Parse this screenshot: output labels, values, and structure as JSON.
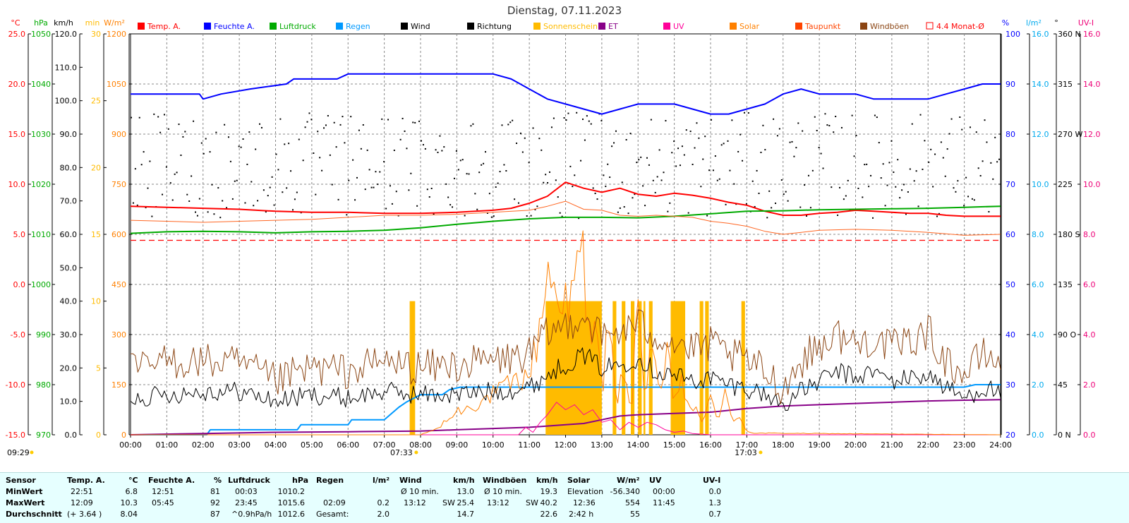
{
  "chart_data": {
    "type": "line",
    "title": "Dienstag, 07.11.2023",
    "x_axis": {
      "ticks": [
        "00:00",
        "01:00",
        "02:00",
        "03:00",
        "04:00",
        "05:00",
        "06:00",
        "07:00",
        "08:00",
        "09:00",
        "10:00",
        "11:00",
        "12:00",
        "13:00",
        "14:00",
        "15:00",
        "16:00",
        "17:00",
        "18:00",
        "19:00",
        "20:00",
        "21:00",
        "22:00",
        "23:00",
        "24:00"
      ],
      "range_hours": [
        0,
        24
      ]
    },
    "sun_events": {
      "sunrise": "07:33",
      "sunset": "17:03",
      "sunshine_start_label": "09:29"
    },
    "left_axes": [
      {
        "unit": "°C",
        "color": "#ff0000",
        "min": -15,
        "max": 25,
        "ticks": [
          "25.0",
          "20.0",
          "15.0",
          "10.0",
          "5.0",
          "0.0",
          "-5.0",
          "-10.0",
          "-15.0"
        ]
      },
      {
        "unit": "hPa",
        "color": "#00aa00",
        "min": 970,
        "max": 1050,
        "ticks": [
          "1050",
          "1040",
          "1030",
          "1020",
          "1010",
          "1000",
          "990",
          "980",
          "970"
        ]
      },
      {
        "unit": "km/h",
        "color": "#000000",
        "min": 0,
        "max": 120,
        "ticks": [
          "120.0",
          "110.0",
          "100.0",
          "90.0",
          "80.0",
          "70.0",
          "60.0",
          "50.0",
          "40.0",
          "30.0",
          "20.0",
          "10.0",
          "0.0"
        ]
      },
      {
        "unit": "min",
        "color": "#ffbb00",
        "min": 0,
        "max": 30,
        "ticks": [
          "30",
          "25",
          "20",
          "15",
          "10",
          "5",
          "0"
        ]
      },
      {
        "unit": "W/m²",
        "color": "#ff8000",
        "min": 0,
        "max": 1200,
        "ticks": [
          "1200",
          "1050",
          "900",
          "750",
          "600",
          "450",
          "300",
          "150",
          "0"
        ]
      }
    ],
    "right_axes": [
      {
        "unit": "%",
        "color": "#0000ff",
        "min": 20,
        "max": 100,
        "ticks": [
          "100",
          "90",
          "80",
          "70",
          "60",
          "50",
          "40",
          "30",
          "20"
        ]
      },
      {
        "unit": "l/m²",
        "color": "#00aaee",
        "min": 0,
        "max": 16,
        "ticks": [
          "16.0",
          "14.0",
          "12.0",
          "10.0",
          "8.0",
          "6.0",
          "4.0",
          "2.0",
          "0.0"
        ]
      },
      {
        "unit": "°",
        "color": "#000000",
        "min": 0,
        "max": 360,
        "ticks": [
          "360 N",
          "315",
          "270 W",
          "225",
          "180 S",
          "135",
          "90 O",
          "45",
          "0 N"
        ]
      },
      {
        "unit": "UV-I",
        "color": "#ee0077",
        "min": 0,
        "max": 16,
        "ticks": [
          "16.0",
          "14.0",
          "12.0",
          "10.0",
          "8.0",
          "6.0",
          "4.0",
          "2.0",
          "0.0"
        ]
      }
    ],
    "legend": [
      {
        "label": "Temp. A.",
        "color": "#ff0000"
      },
      {
        "label": "Feuchte A.",
        "color": "#0000ff"
      },
      {
        "label": "Luftdruck",
        "color": "#00aa00"
      },
      {
        "label": "Regen",
        "color": "#0099ff"
      },
      {
        "label": "Wind",
        "color": "#000000"
      },
      {
        "label": "Richtung",
        "color": "#000000"
      },
      {
        "label": "Sonnenschein",
        "color": "#ffbb00"
      },
      {
        "label": "ET",
        "color": "#880088"
      },
      {
        "label": "UV",
        "color": "#ff0099"
      },
      {
        "label": "Solar",
        "color": "#ff8000"
      },
      {
        "label": "Taupunkt",
        "color": "#ff4400"
      },
      {
        "label": "Windböen",
        "color": "#8b4513"
      },
      {
        "label": "4.4 Monat-Ø",
        "color": "#ff0000"
      }
    ],
    "reference_lines": [
      {
        "name": "4.4 Monat-Ø",
        "axis": "°C",
        "value": 4.4
      }
    ],
    "series": [
      {
        "name": "Temp. A.",
        "axis": "°C",
        "color": "#ff0000",
        "x": [
          0,
          1,
          2,
          3,
          4,
          5,
          6,
          7,
          8,
          9,
          10,
          10.5,
          11,
          11.5,
          12,
          12.5,
          13,
          13.5,
          14,
          14.5,
          15,
          15.5,
          16,
          16.5,
          17,
          17.5,
          18,
          18.5,
          19,
          19.5,
          20,
          20.5,
          21,
          21.5,
          22,
          22.5,
          23,
          23.5,
          24
        ],
        "y": [
          7.8,
          7.7,
          7.6,
          7.5,
          7.3,
          7.2,
          7.2,
          7.1,
          7.1,
          7.2,
          7.4,
          7.6,
          8.1,
          8.8,
          10.2,
          9.6,
          9.2,
          9.6,
          9.0,
          8.8,
          9.1,
          8.9,
          8.6,
          8.2,
          7.9,
          7.3,
          6.9,
          6.9,
          7.1,
          7.2,
          7.4,
          7.3,
          7.2,
          7.1,
          7.1,
          6.9,
          6.8,
          6.8,
          6.8
        ]
      },
      {
        "name": "Feuchte A.",
        "axis": "%",
        "color": "#0000ff",
        "x": [
          0,
          1.9,
          2.0,
          2.5,
          3.3,
          4.3,
          4.5,
          5.0,
          5.7,
          6.0,
          7,
          8,
          9,
          10.0,
          10.5,
          11.0,
          11.5,
          12.0,
          12.5,
          13.0,
          13.5,
          14.0,
          14.5,
          15.0,
          15.5,
          16.0,
          16.5,
          17.0,
          17.5,
          18.0,
          18.5,
          19.0,
          19.5,
          20.0,
          20.5,
          21.0,
          21.5,
          22.0,
          22.5,
          23.0,
          23.5,
          24
        ],
        "y": [
          88,
          88,
          87,
          88,
          89,
          90,
          91,
          91,
          91,
          92,
          92,
          92,
          92,
          92,
          91,
          89,
          87,
          86,
          85,
          84,
          85,
          86,
          86,
          86,
          85,
          84,
          84,
          85,
          86,
          88,
          89,
          88,
          88,
          88,
          87,
          87,
          87,
          87,
          88,
          89,
          90,
          90
        ]
      },
      {
        "name": "Luftdruck",
        "axis": "hPa",
        "color": "#00aa00",
        "x": [
          0,
          1,
          2,
          3,
          4,
          5,
          6,
          7,
          8,
          9,
          10,
          11,
          12,
          13,
          14,
          15,
          16,
          17,
          18,
          19,
          20,
          21,
          22,
          23,
          24
        ],
        "y": [
          1010.2,
          1010.5,
          1010.6,
          1010.5,
          1010.3,
          1010.5,
          1010.6,
          1010.8,
          1011.3,
          1012.0,
          1012.6,
          1013.1,
          1013.4,
          1013.4,
          1013.3,
          1013.6,
          1014.1,
          1014.6,
          1014.7,
          1014.9,
          1015.0,
          1015.1,
          1015.2,
          1015.4,
          1015.6
        ]
      },
      {
        "name": "Taupunkt",
        "axis": "°C",
        "color": "#ff6622",
        "x": [
          0,
          1,
          2,
          3,
          4,
          5,
          6,
          7,
          8,
          9,
          10,
          11,
          11.5,
          12,
          12.5,
          13,
          13.5,
          14,
          14.5,
          15,
          15.5,
          16,
          16.5,
          17,
          17.5,
          18,
          18.5,
          19,
          20,
          21,
          22,
          23,
          24
        ],
        "y": [
          6.4,
          6.3,
          6.2,
          6.3,
          6.4,
          6.5,
          6.7,
          6.9,
          6.9,
          7.0,
          7.2,
          7.4,
          7.8,
          8.3,
          7.5,
          7.4,
          6.9,
          6.8,
          6.9,
          6.8,
          6.7,
          6.3,
          6.1,
          5.8,
          5.3,
          5.0,
          5.2,
          5.4,
          5.5,
          5.4,
          5.2,
          4.9,
          5.0
        ]
      },
      {
        "name": "Regen",
        "axis": "l/m²",
        "color": "#0099ff",
        "x": [
          0,
          2.1,
          2.2,
          4.6,
          4.7,
          6.0,
          6.1,
          7.0,
          7.4,
          7.6,
          8.0,
          8.6,
          8.8,
          9.1,
          9.5,
          23.0,
          23.3,
          24
        ],
        "y": [
          0,
          0,
          0.2,
          0.2,
          0.4,
          0.4,
          0.6,
          0.6,
          1.1,
          1.3,
          1.6,
          1.6,
          1.8,
          1.9,
          1.9,
          1.9,
          2.0,
          2.0
        ]
      },
      {
        "name": "ET",
        "axis": "l/m²",
        "color": "#880088",
        "x": [
          0,
          2,
          4,
          6,
          8,
          9,
          10,
          11,
          11.5,
          12,
          12.5,
          13,
          13.5,
          14,
          15,
          16,
          17,
          18,
          19,
          20,
          21,
          22,
          23,
          24
        ],
        "y": [
          0,
          0.05,
          0.1,
          0.12,
          0.15,
          0.2,
          0.25,
          0.3,
          0.35,
          0.4,
          0.45,
          0.6,
          0.75,
          0.8,
          0.85,
          0.9,
          1.05,
          1.15,
          1.2,
          1.25,
          1.3,
          1.35,
          1.38,
          1.4
        ]
      },
      {
        "name": "UV",
        "axis": "UV-I",
        "color": "#ff0099",
        "x": [
          0,
          10.7,
          10.9,
          11.1,
          11.3,
          11.5,
          11.75,
          12,
          12.25,
          12.5,
          12.75,
          13,
          13.25,
          13.5,
          13.75,
          14,
          14.25,
          14.5,
          14.75,
          15,
          15.25,
          15.5,
          16,
          24
        ],
        "y": [
          0,
          0,
          0.3,
          0.1,
          0.5,
          0.8,
          1.3,
          1.0,
          1.2,
          0.8,
          1.0,
          0.5,
          0.6,
          0.2,
          0.5,
          0.3,
          0.5,
          0.4,
          0.2,
          0.1,
          0.15,
          0.05,
          0,
          0
        ]
      },
      {
        "name": "Solar",
        "axis": "W/m²",
        "color": "#ff8000",
        "x": [
          0,
          8.0,
          8.5,
          9.0,
          9.5,
          10.0,
          10.5,
          11.0,
          11.3,
          11.5,
          11.7,
          11.9,
          12.1,
          12.3,
          12.5,
          12.6,
          12.8,
          13.0,
          13.2,
          13.4,
          13.6,
          13.8,
          14.0,
          14.2,
          14.4,
          14.6,
          14.8,
          15.0,
          15.2,
          15.4,
          15.6,
          15.8,
          16.0,
          16.2,
          16.4,
          16.6,
          16.8,
          17.0,
          17.2,
          24
        ],
        "y": [
          0,
          0,
          20,
          70,
          90,
          120,
          150,
          180,
          320,
          510,
          420,
          460,
          340,
          480,
          554,
          260,
          430,
          120,
          350,
          60,
          210,
          50,
          390,
          120,
          300,
          80,
          240,
          100,
          170,
          60,
          90,
          30,
          110,
          50,
          130,
          30,
          60,
          10,
          5,
          0
        ]
      },
      {
        "name": "Wind",
        "axis": "km/h",
        "color": "#000000",
        "x": [
          0,
          1,
          2,
          3,
          4,
          5,
          6,
          7,
          8,
          9,
          10,
          11,
          11.5,
          12,
          12.5,
          13,
          13.5,
          14,
          14.5,
          15,
          15.5,
          16,
          16.5,
          17,
          17.5,
          18,
          18.5,
          19,
          19.5,
          20,
          20.5,
          21,
          21.5,
          22,
          22.5,
          23,
          23.5,
          24
        ],
        "y": [
          11,
          12,
          13,
          13,
          10,
          12,
          11,
          13,
          12,
          12,
          13,
          14,
          18,
          21,
          24,
          20,
          21,
          23,
          19,
          18,
          16,
          17,
          15,
          14,
          12,
          9,
          13,
          16,
          19,
          17,
          19,
          16,
          17,
          18,
          14,
          11,
          14,
          13
        ]
      },
      {
        "name": "Windböen",
        "axis": "km/h",
        "color": "#8b4513",
        "x": [
          0,
          1,
          2,
          3,
          4,
          5,
          6,
          7,
          8,
          9,
          10,
          11,
          11.5,
          12,
          12.5,
          13,
          13.5,
          14,
          14.5,
          15,
          15.5,
          16,
          16.5,
          17,
          17.5,
          18,
          18.5,
          19,
          19.5,
          20,
          20.5,
          21,
          21.5,
          22,
          22.5,
          23,
          23.5,
          24
        ],
        "y": [
          19,
          22,
          22,
          21,
          16,
          20,
          19,
          22,
          20,
          21,
          22,
          24,
          30,
          33,
          36,
          29,
          31,
          33,
          30,
          28,
          25,
          27,
          24,
          22,
          19,
          14,
          22,
          27,
          30,
          27,
          29,
          26,
          28,
          31,
          22,
          18,
          24,
          22
        ]
      },
      {
        "name": "Sonnenschein",
        "axis": "min",
        "type": "bar",
        "color": "#ffbb00",
        "intervals": [
          [
            7.7,
            7.85
          ],
          [
            11.45,
            13.0
          ],
          [
            13.3,
            13.4
          ],
          [
            13.55,
            13.65
          ],
          [
            13.8,
            13.9
          ],
          [
            14.0,
            14.1
          ],
          [
            14.15,
            14.2
          ],
          [
            14.3,
            14.4
          ],
          [
            14.9,
            15.3
          ],
          [
            15.7,
            15.8
          ],
          [
            15.85,
            15.95
          ],
          [
            16.85,
            16.95
          ]
        ]
      },
      {
        "name": "Richtung",
        "axis": "°",
        "type": "scatter",
        "color": "#000000",
        "range_deg": [
          195,
          290
        ]
      }
    ],
    "grid": true
  },
  "stats_table": {
    "sensor_header": "Sensor",
    "row_labels": [
      "MinWert",
      "MaxWert",
      "Durchschnitt"
    ],
    "temp": {
      "title": "Temp. A.",
      "unit": "°C",
      "min_time": "22:51",
      "min": "6.8",
      "max_time": "12:09",
      "max": "10.3",
      "avg_note": "(+ 3.64 )",
      "avg": "8.04"
    },
    "humidity": {
      "title": "Feuchte A.",
      "unit": "%",
      "min_time": "12:51",
      "min": "81",
      "max_time": "05:45",
      "max": "92",
      "avg": "87"
    },
    "pressure": {
      "title": "Luftdruck",
      "unit": "hPa",
      "min_time": "00:03",
      "min": "1010.2",
      "max_time": "23:45",
      "max": "1015.6",
      "avg_note": "^0.9hPa/h",
      "avg": "1012.6"
    },
    "rain": {
      "title": "Regen",
      "unit": "l/m²",
      "max_time": "02:09",
      "max": "0.2",
      "total_label": "Gesamt:",
      "total": "2.0"
    },
    "wind": {
      "title": "Wind",
      "unit": "km/h",
      "min_label": "Ø 10 min.",
      "min": "13.0",
      "max_time": "13:12",
      "max_dir": "SW",
      "max": "25.4",
      "avg": "14.7"
    },
    "gusts": {
      "title": "Windböen",
      "unit": "km/h",
      "min_label": "Ø 10 min.",
      "min": "19.3",
      "max_time": "13:12",
      "max_dir": "SW",
      "max": "40.2",
      "avg": "22.6"
    },
    "solar": {
      "title": "Solar",
      "unit": "W/m²",
      "min_label": "Elevation",
      "min": "-56.340",
      "max_time": "12:36",
      "max": "554",
      "avg_label": "2:42 h",
      "avg": "55"
    },
    "uv": {
      "title": "UV",
      "unit": "UV-I",
      "min_time": "00:00",
      "min": "0.0",
      "max_time": "11:45",
      "max": "1.3",
      "avg": "0.7"
    }
  }
}
